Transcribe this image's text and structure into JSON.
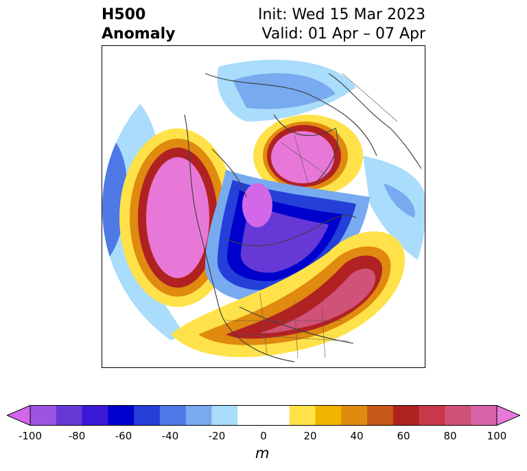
{
  "title": {
    "left_line1": "H500",
    "left_line2": "Anomaly",
    "right_line1": "Init: Wed 15 Mar 2023",
    "right_line2": "Valid: 01 Apr – 07 Apr"
  },
  "colorbar": {
    "ticks": [
      "-100",
      "-80",
      "-60",
      "-40",
      "-20",
      "0",
      "20",
      "40",
      "60",
      "80",
      "100"
    ],
    "unit": "m",
    "colors": [
      "#d268e8",
      "#9b55e0",
      "#6638d6",
      "#3a1ad6",
      "#0000cc",
      "#2440d8",
      "#4d78e6",
      "#78aaf0",
      "#aadcfb",
      "#ffffff",
      "#ffffff",
      "#ffe24a",
      "#f0b400",
      "#e08a10",
      "#c85818",
      "#b02222",
      "#c83848",
      "#d05278",
      "#d865a8",
      "#e878d8"
    ]
  }
}
